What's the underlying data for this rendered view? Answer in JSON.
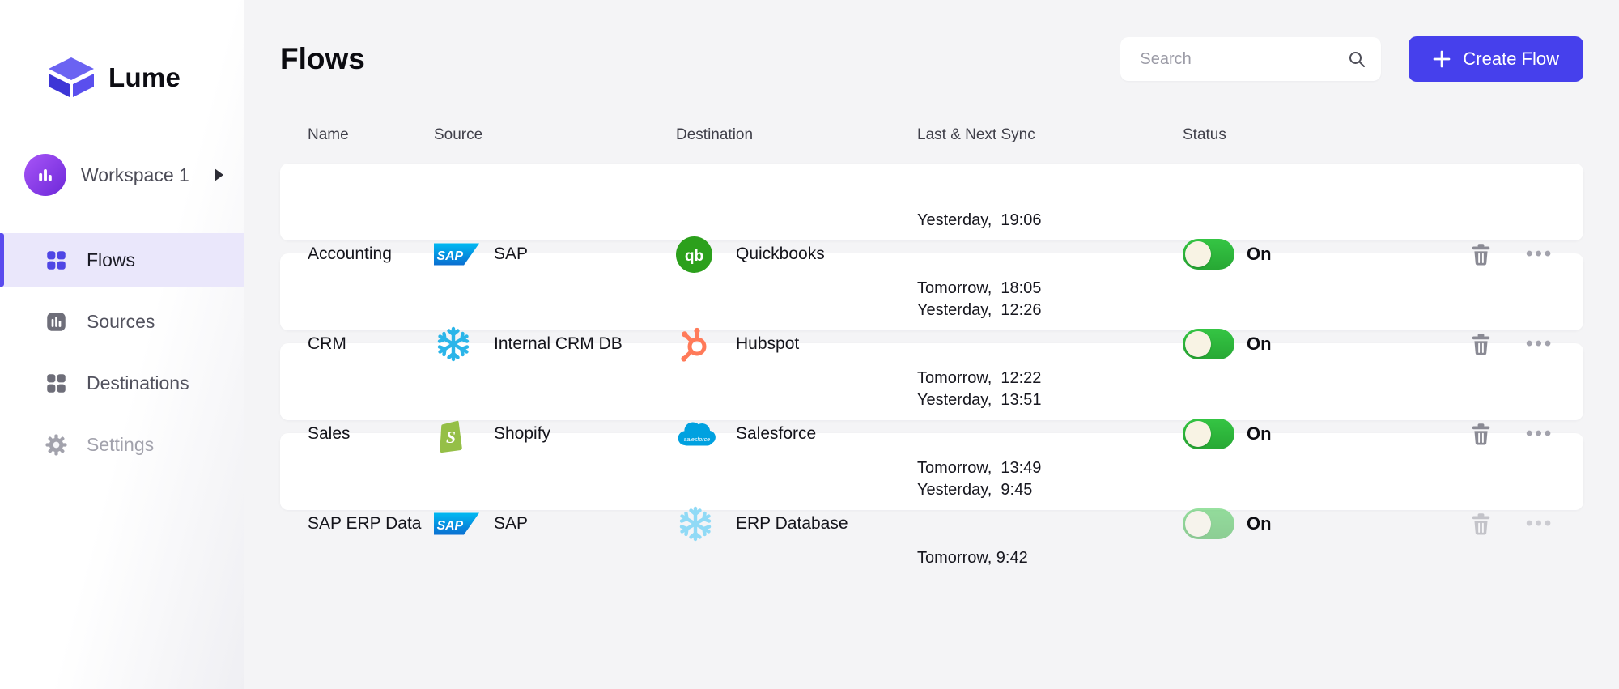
{
  "app": {
    "name": "Lume"
  },
  "sidebar": {
    "workspace": {
      "label": "Workspace 1"
    },
    "items": [
      {
        "label": "Flows",
        "icon": "grid-icon",
        "active": true
      },
      {
        "label": "Sources",
        "icon": "bars-box-icon",
        "active": false
      },
      {
        "label": "Destinations",
        "icon": "grid-icon",
        "active": false
      },
      {
        "label": "Settings",
        "icon": "gear-icon",
        "active": false
      }
    ]
  },
  "header": {
    "title": "Flows",
    "search_placeholder": "Search",
    "create_button": "Create Flow"
  },
  "table": {
    "columns": [
      "Name",
      "Source",
      "Destination",
      "Last & Next Sync",
      "Status"
    ],
    "rows": [
      {
        "name": "Accounting",
        "source": {
          "label": "SAP",
          "icon": "sap"
        },
        "destination": {
          "label": "Quickbooks",
          "icon": "quickbooks"
        },
        "last_sync": "Yesterday,  19:06",
        "next_sync": "Tomorrow,  18:05",
        "status": "On",
        "muted": false
      },
      {
        "name": "CRM",
        "source": {
          "label": "Internal CRM DB",
          "icon": "snowflake"
        },
        "destination": {
          "label": "Hubspot",
          "icon": "hubspot"
        },
        "last_sync": "Yesterday,  12:26",
        "next_sync": "Tomorrow,  12:22",
        "status": "On",
        "muted": false
      },
      {
        "name": "Sales",
        "source": {
          "label": "Shopify",
          "icon": "shopify"
        },
        "destination": {
          "label": "Salesforce",
          "icon": "salesforce"
        },
        "last_sync": "Yesterday,  13:51",
        "next_sync": "Tomorrow,  13:49",
        "status": "On",
        "muted": false
      },
      {
        "name": "SAP ERP Data",
        "source": {
          "label": "SAP",
          "icon": "sap"
        },
        "destination": {
          "label": "ERP Database",
          "icon": "snowflake-light"
        },
        "last_sync": "Yesterday,  9:45",
        "next_sync": "Tomorrow, 9:42",
        "status": "On",
        "muted": true
      }
    ]
  },
  "colors": {
    "brand_indigo": "#4640EC",
    "active_nav_bg": "#EAE7FB",
    "toggle_green": "#2EB93E",
    "sap_blue": "#0A6ED1",
    "quickbooks_green": "#2CA01C",
    "snowflake_blue": "#29B5E8",
    "hubspot_orange": "#FF7A59",
    "shopify_green": "#95BF47",
    "salesforce_blue": "#00A1E0"
  }
}
